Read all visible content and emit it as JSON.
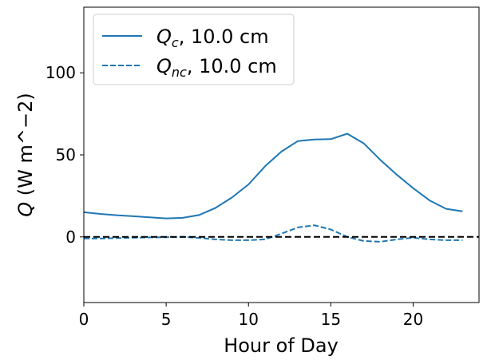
{
  "chart_data": {
    "type": "line",
    "xlabel": "Hour of Day",
    "ylabel_symbol": "Q",
    "ylabel_unit": " (W m^−2)",
    "xlim": [
      0,
      24
    ],
    "ylim": [
      -40,
      140
    ],
    "xticks": [
      0,
      5,
      10,
      15,
      20
    ],
    "yticks": [
      0,
      50,
      100
    ],
    "grid": false,
    "legend_position": "top-left",
    "reference_line": {
      "y": 0,
      "style": "dashed",
      "color": "#000000"
    },
    "series": [
      {
        "name_symbol": "Q",
        "name_subscript": "c",
        "name_suffix": ", 10.0 cm",
        "style": "solid",
        "color": "#1f77b4",
        "x": [
          0,
          1,
          2,
          3,
          4,
          5,
          6,
          7,
          8,
          9,
          10,
          11,
          12,
          13,
          14,
          15,
          16,
          17,
          18,
          19,
          20,
          21,
          22,
          23
        ],
        "y": [
          15,
          14,
          13.2,
          12.6,
          11.9,
          11.3,
          11.6,
          13.3,
          17.7,
          24,
          32,
          43,
          52,
          58.4,
          59.4,
          59.6,
          62.9,
          57,
          47,
          38,
          29.7,
          22.2,
          17.1,
          15.6
        ]
      },
      {
        "name_symbol": "Q",
        "name_subscript": "nc",
        "name_suffix": ", 10.0 cm",
        "style": "dashed",
        "color": "#1f77b4",
        "x": [
          0,
          1,
          2,
          3,
          4,
          5,
          6,
          7,
          8,
          9,
          10,
          11,
          12,
          13,
          14,
          15,
          16,
          17,
          18,
          19,
          20,
          21,
          22,
          23
        ],
        "y": [
          -1,
          -1,
          -0.7,
          -0.5,
          -0.3,
          -0.2,
          0,
          -0.6,
          -1.5,
          -2,
          -2,
          -1.5,
          2,
          5.8,
          7.1,
          4.5,
          0,
          -2.5,
          -3,
          -1.5,
          -0.5,
          -1.5,
          -2,
          -2
        ]
      }
    ]
  }
}
